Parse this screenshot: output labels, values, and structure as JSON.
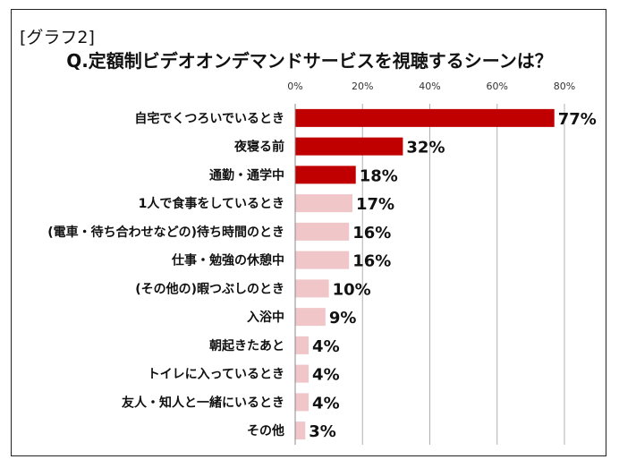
{
  "graph_label": "[グラフ2]",
  "chart_data": {
    "type": "bar",
    "orientation": "horizontal",
    "title": "Q.定額制ビデオオンデマンドサービスを視聴するシーンは？",
    "xlim": [
      0,
      80
    ],
    "ticks": [
      0,
      20,
      40,
      60,
      80
    ],
    "tick_labels": [
      "0%",
      "20%",
      "40%",
      "60%",
      "80%"
    ],
    "value_suffix": "%",
    "grid": true,
    "legend": "none",
    "categories": [
      "自宅でくつろいでいるとき",
      "夜寝る前",
      "通勤・通学中",
      "1人で食事をしているとき",
      "(電車・待ち合わせなどの)待ち時間のとき",
      "仕事・勉強の休憩中",
      "(その他の)暇つぶしのとき",
      "入浴中",
      "朝起きたあと",
      "トイレに入っているとき",
      "友人・知人と一緒にいるとき",
      "その他"
    ],
    "values": [
      77,
      32,
      18,
      17,
      16,
      16,
      10,
      9,
      4,
      4,
      4,
      3
    ],
    "highlight_count": 3,
    "colors": {
      "highlight": "#c00000",
      "normal": "#f0c6c9",
      "grid": "#b0b0b0"
    }
  }
}
